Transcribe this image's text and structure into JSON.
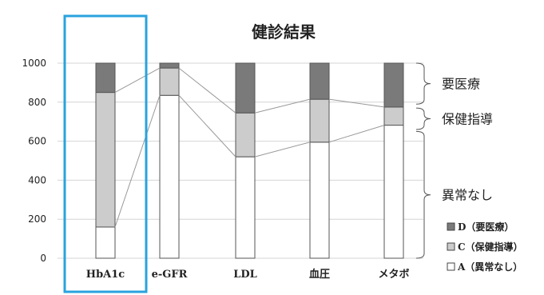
{
  "chart_data": {
    "type": "bar",
    "stacked": true,
    "title": "健診結果",
    "categories": [
      "HbA1c",
      "e-GFR",
      "LDL",
      "血圧",
      "メタボ"
    ],
    "ylim": [
      0,
      1000
    ],
    "yticks": [
      "0",
      "200",
      "400",
      "600",
      "800",
      "1000"
    ],
    "grid": true,
    "series": [
      {
        "name": "A（異常なし）",
        "values": [
          160,
          835,
          520,
          595,
          682
        ],
        "color": "#ffffff"
      },
      {
        "name": "C（保健指導）",
        "values": [
          690,
          140,
          225,
          220,
          93
        ],
        "color": "#cccccc"
      },
      {
        "name": "D（要医療）",
        "values": [
          150,
          25,
          255,
          185,
          225
        ],
        "color": "#7a7a7a"
      }
    ],
    "highlight_category": "HbA1c",
    "highlight_color": "#29a3dd",
    "brackets": [
      {
        "label": "要医療",
        "from": 790,
        "to": 1000
      },
      {
        "label": "保健指導",
        "from": 660,
        "to": 770
      },
      {
        "label": "異常なし",
        "from": 0,
        "to": 650
      }
    ],
    "legend": {
      "position": "right",
      "items": [
        {
          "label": "D（要医療）",
          "color": "#7a7a7a"
        },
        {
          "label": "C（保健指導）",
          "color": "#cccccc"
        },
        {
          "label": "A（異常なし）",
          "color": "#ffffff"
        }
      ]
    }
  }
}
